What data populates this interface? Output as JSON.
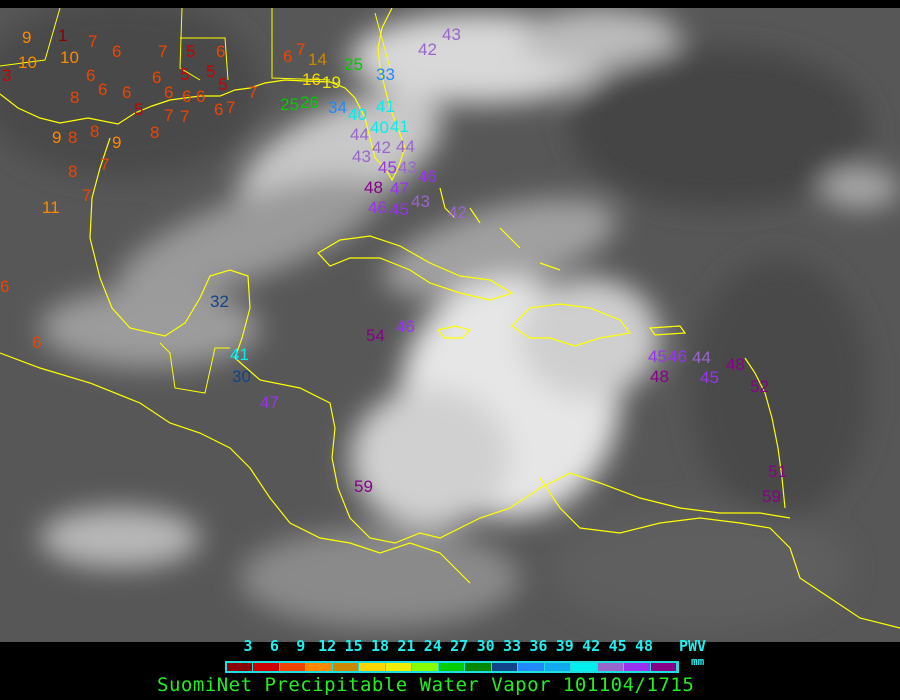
{
  "legend": {
    "ticks": [
      "3",
      "6",
      "9",
      "12",
      "15",
      "18",
      "21",
      "24",
      "27",
      "30",
      "33",
      "36",
      "39",
      "42",
      "45",
      "48"
    ],
    "colors": [
      "#8b0000",
      "#cc0000",
      "#ee4400",
      "#ff8800",
      "#cc8800",
      "#ffd700",
      "#eeee00",
      "#88ff00",
      "#00cc00",
      "#008800",
      "#114488",
      "#2288ff",
      "#11aaee",
      "#00eeee",
      "#9966cc",
      "#9933ee",
      "#880088"
    ],
    "unit_top": "PWV",
    "unit_bottom": "mm",
    "title": "SuomiNet Precipitable Water Vapor 101104/1715"
  },
  "map": {
    "coastline_color": "#ffff00",
    "stations": [
      "1",
      "9",
      "10",
      "10",
      "3",
      "7",
      "6",
      "7",
      "5",
      "6",
      "6",
      "6",
      "8",
      "6",
      "6",
      "6",
      "5",
      "5",
      "5",
      "5",
      "6",
      "6",
      "7",
      "6",
      "7",
      "7",
      "7",
      "9",
      "8",
      "8",
      "9",
      "8",
      "7",
      "8",
      "7",
      "11",
      "6",
      "6",
      "6",
      "7",
      "14",
      "16",
      "19",
      "25",
      "33",
      "42",
      "43",
      "25",
      "26",
      "34",
      "40",
      "41",
      "40",
      "41",
      "44",
      "42",
      "44",
      "43",
      "45",
      "43",
      "47",
      "46",
      "48",
      "46",
      "45",
      "43",
      "42",
      "32",
      "54",
      "46",
      "41",
      "30",
      "47",
      "59",
      "45",
      "46",
      "44",
      "48",
      "45",
      "48",
      "52",
      "51",
      "59"
    ]
  }
}
